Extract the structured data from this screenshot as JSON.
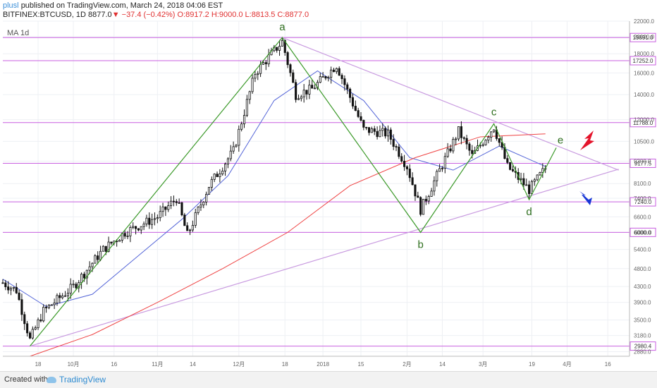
{
  "header": {
    "author": "plusl",
    "published": "published on TradingView.com, March 24, 2018 04:06 EST",
    "symbol": "BITFINEX:BTCUSD, 1D",
    "last": "8877.0",
    "change": "−37.4 (−0.42%)",
    "ohlc": "O:8917.2 H:9000.0 L:8813.5 C:8877.0"
  },
  "footer": {
    "created_with": "Created with",
    "brand": "TradingView"
  },
  "colors": {
    "grid": "#eef0f4",
    "level": "#c85fe0",
    "wave": "#3c9a2a",
    "ma_blue": "#5566d8",
    "ma_red": "#ef4444",
    "up_candle": "#ffffff",
    "down_candle": "#111111",
    "arrow_up": "#e4142b",
    "arrow_down": "#1736d6",
    "trendline": "#c99be0"
  },
  "chart_data": {
    "type": "candlestick",
    "indicator_label": "MA 1d",
    "scale": "log",
    "ylim": [
      2800,
      22000
    ],
    "y_ticks": [
      22000,
      20000,
      18000,
      16000,
      14000,
      12000,
      10500,
      9300,
      8100,
      7400,
      6600,
      6000,
      5400,
      4800,
      4300,
      3900,
      3500,
      3180,
      2880
    ],
    "x_tick_labels": [
      "18",
      "10月",
      "16",
      "11月",
      "14",
      "12月",
      "18",
      "2018",
      "15",
      "2月",
      "14",
      "3月",
      "19",
      "4月",
      "16"
    ],
    "horizontal_levels": [
      19891.0,
      17252.0,
      11788.0,
      9177.5,
      7240.0,
      6000.0,
      2980.4
    ],
    "level_labels": [
      "19891.0",
      "17252.0",
      "11788.0",
      "9177.5",
      "7240.0",
      "6000.0",
      "2980.4"
    ],
    "wave_points": [
      {
        "label": "",
        "date": "2017-09-15",
        "value": 2980
      },
      {
        "label": "a",
        "date": "2017-12-17",
        "value": 19891
      },
      {
        "label": "b",
        "date": "2018-02-06",
        "value": 6000
      },
      {
        "label": "c",
        "date": "2018-03-05",
        "value": 11700
      },
      {
        "label": "d",
        "date": "2018-03-18",
        "value": 7340
      },
      {
        "label": "e",
        "date": "2018-03-28",
        "value": 10100
      }
    ],
    "trendlines": [
      {
        "from": {
          "date": "2017-12-17",
          "value": 19891
        },
        "to": {
          "date": "2018-04-20",
          "value": 8800
        }
      },
      {
        "from": {
          "date": "2017-09-15",
          "value": 2980
        },
        "to": {
          "date": "2018-04-20",
          "value": 8850
        }
      }
    ],
    "signals": [
      {
        "direction": "up",
        "color": "red"
      },
      {
        "direction": "down",
        "color": "blue"
      }
    ],
    "ma_series": [
      {
        "color": "blue",
        "values_approx": [
          4500,
          3800,
          4100,
          5200,
          6500,
          8500,
          13500,
          16200,
          13500,
          9500,
          8800,
          10200,
          9000
        ]
      },
      {
        "color": "red",
        "values_approx": [
          2800,
          3200,
          3900,
          4800,
          6000,
          8000,
          9500,
          10800,
          11000
        ]
      }
    ],
    "candles_note": "daily OHLC, Sep 2017 – Mar 2018",
    "last_close": 8877.0
  }
}
